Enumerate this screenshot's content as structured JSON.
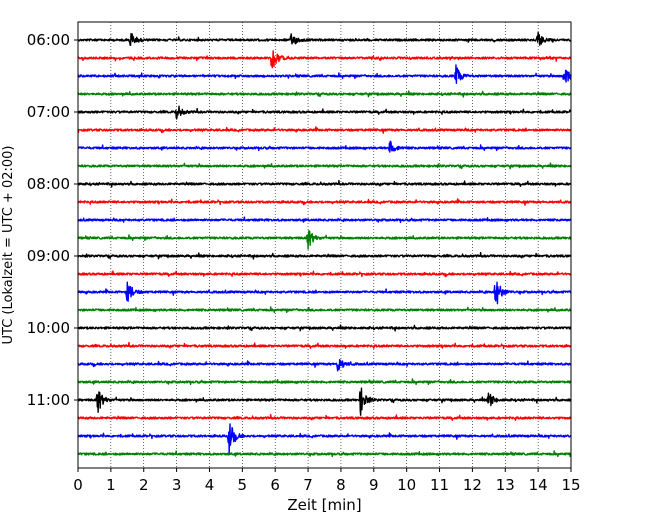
{
  "chart_data": {
    "type": "line",
    "title": "",
    "xlabel": "Zeit  [min]",
    "ylabel": "UTC (Lokalzeit = UTC + 02:00)",
    "xlim": [
      0,
      15
    ],
    "x_ticks": [
      0,
      1,
      2,
      3,
      4,
      5,
      6,
      7,
      8,
      9,
      10,
      11,
      12,
      13,
      14,
      15
    ],
    "y_tick_labels": [
      "06:00",
      "07:00",
      "08:00",
      "09:00",
      "10:00",
      "11:00"
    ],
    "row_interval_minutes": 15,
    "grid": "vertical dotted lines at each minute",
    "colors": [
      "#000000",
      "#ff0000",
      "#0000ff",
      "#008000"
    ],
    "series": [
      {
        "start": "06:00",
        "color": "#000000",
        "events": [
          {
            "t": 1.6,
            "amp": 1.0
          },
          {
            "t": 6.5,
            "amp": 0.9
          },
          {
            "t": 14.0,
            "amp": 0.8
          }
        ]
      },
      {
        "start": "06:15",
        "color": "#ff0000",
        "events": [
          {
            "t": 5.9,
            "amp": 1.6
          }
        ]
      },
      {
        "start": "06:30",
        "color": "#0000ff",
        "events": [
          {
            "t": 11.5,
            "amp": 1.2
          },
          {
            "t": 14.8,
            "amp": 1.4
          }
        ]
      },
      {
        "start": "06:45",
        "color": "#008000",
        "events": []
      },
      {
        "start": "07:00",
        "color": "#000000",
        "events": [
          {
            "t": 3.0,
            "amp": 0.8
          }
        ]
      },
      {
        "start": "07:15",
        "color": "#ff0000",
        "events": []
      },
      {
        "start": "07:30",
        "color": "#0000ff",
        "events": [
          {
            "t": 9.5,
            "amp": 1.0
          }
        ]
      },
      {
        "start": "07:45",
        "color": "#008000",
        "events": []
      },
      {
        "start": "08:00",
        "color": "#000000",
        "events": []
      },
      {
        "start": "08:15",
        "color": "#ff0000",
        "events": []
      },
      {
        "start": "08:30",
        "color": "#0000ff",
        "events": []
      },
      {
        "start": "08:45",
        "color": "#008000",
        "events": [
          {
            "t": 7.0,
            "amp": 1.2
          }
        ]
      },
      {
        "start": "09:00",
        "color": "#000000",
        "events": []
      },
      {
        "start": "09:15",
        "color": "#ff0000",
        "events": []
      },
      {
        "start": "09:30",
        "color": "#0000ff",
        "events": [
          {
            "t": 1.5,
            "amp": 1.4
          },
          {
            "t": 12.7,
            "amp": 2.0
          }
        ]
      },
      {
        "start": "09:45",
        "color": "#008000",
        "events": []
      },
      {
        "start": "10:00",
        "color": "#000000",
        "events": []
      },
      {
        "start": "10:15",
        "color": "#ff0000",
        "events": []
      },
      {
        "start": "10:30",
        "color": "#0000ff",
        "events": [
          {
            "t": 7.9,
            "amp": 1.0
          }
        ]
      },
      {
        "start": "10:45",
        "color": "#008000",
        "events": []
      },
      {
        "start": "11:00",
        "color": "#000000",
        "events": [
          {
            "t": 0.6,
            "amp": 1.5
          },
          {
            "t": 8.6,
            "amp": 1.6
          },
          {
            "t": 12.5,
            "amp": 0.9
          }
        ]
      },
      {
        "start": "11:15",
        "color": "#ff0000",
        "events": []
      },
      {
        "start": "11:30",
        "color": "#0000ff",
        "events": [
          {
            "t": 4.6,
            "amp": 1.8
          }
        ]
      },
      {
        "start": "11:45",
        "color": "#008000",
        "events": []
      }
    ]
  }
}
